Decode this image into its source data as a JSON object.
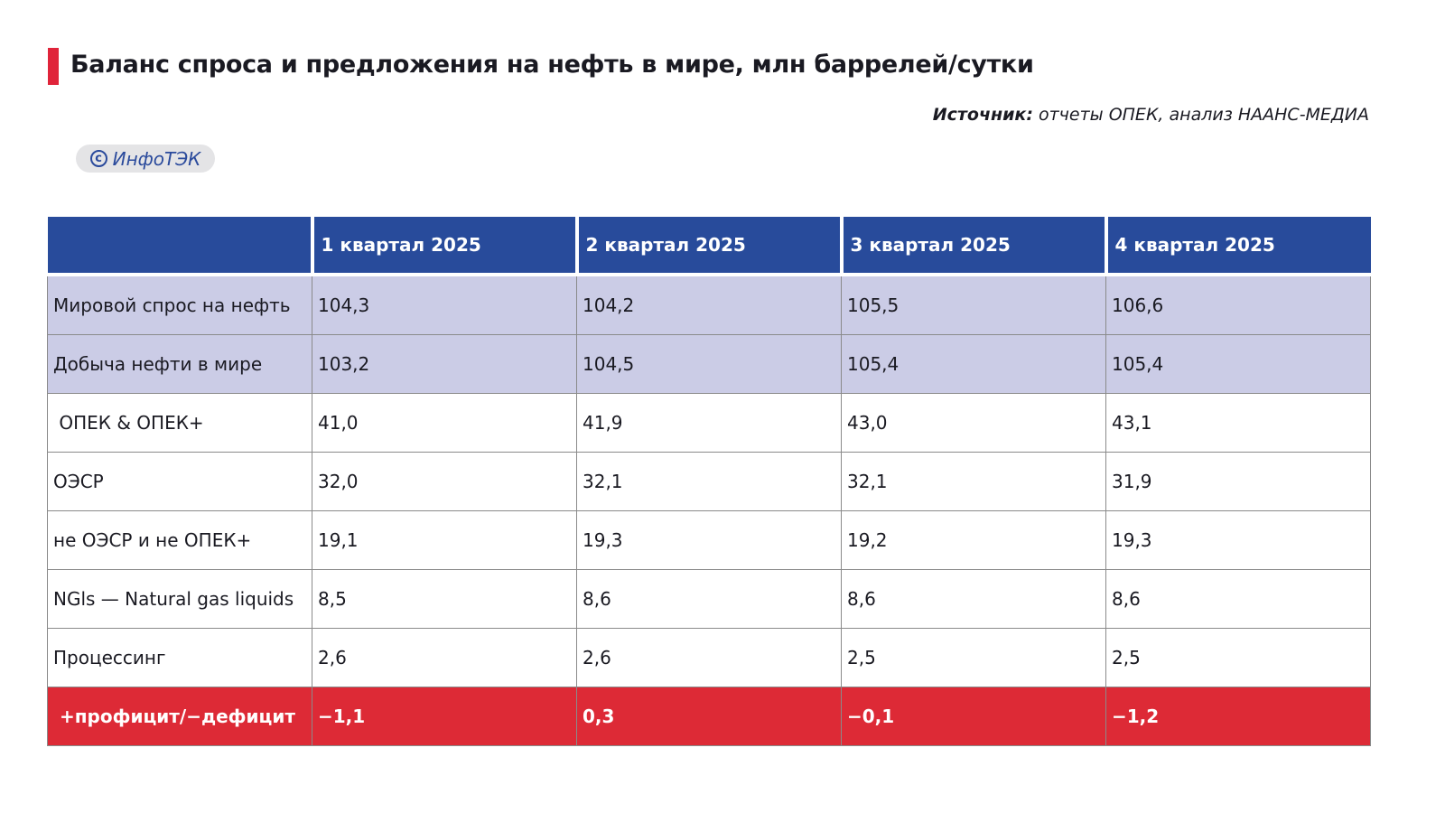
{
  "title": "Баланс спроса и предложения на нефть в мире, млн баррелей/сутки",
  "source": {
    "label": "Источник:",
    "text": " отчеты ОПЕК, анализ НААНС-МЕДИА"
  },
  "badge": {
    "symbol": "c",
    "text": "ИнфоТЭК"
  },
  "table": {
    "headers": [
      "",
      "1 квартал 2025",
      "2 квартал 2025",
      "3 квартал 2025",
      "4 квартал 2025"
    ],
    "rows": [
      {
        "label": "Мировой спрос на нефть",
        "values": [
          "104,3",
          "104,2",
          "105,5",
          "106,6"
        ]
      },
      {
        "label": "Добыча нефти в мире",
        "values": [
          "103,2",
          "104,5",
          "105,4",
          "105,4"
        ]
      },
      {
        "label": " ОПЕК & ОПЕК+",
        "values": [
          "41,0",
          "41,9",
          "43,0",
          "43,1"
        ]
      },
      {
        "label": "ОЭСР",
        "values": [
          "32,0",
          "32,1",
          "32,1",
          "31,9"
        ]
      },
      {
        "label": "не ОЭСР и не ОПЕК+",
        "values": [
          "19,1",
          "19,3",
          "19,2",
          "19,3"
        ]
      },
      {
        "label": "NGls — Natural gas liquids",
        "values": [
          "8,5",
          "8,6",
          "8,6",
          "8,6"
        ]
      },
      {
        "label": "Процессинг",
        "values": [
          "2,6",
          "2,6",
          "2,5",
          "2,5"
        ]
      },
      {
        "label": " +профицит/−дефицит",
        "values": [
          "−1,1",
          "0,3",
          "−0,1",
          "−1,2"
        ]
      }
    ]
  }
}
